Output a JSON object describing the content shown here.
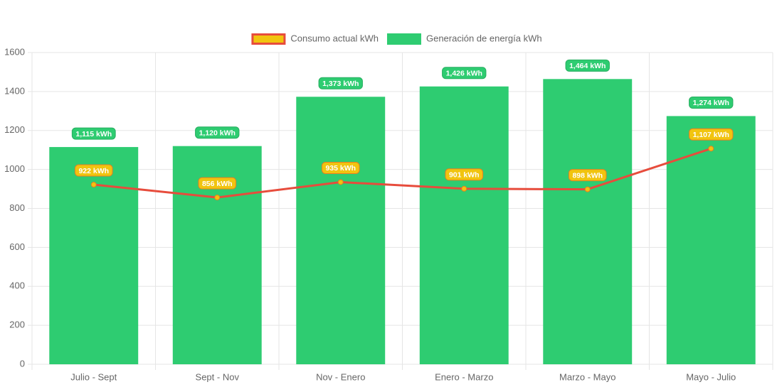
{
  "chart_data": {
    "type": "bar",
    "categories": [
      "Julio - Sept",
      "Sept - Nov",
      "Nov - Enero",
      "Enero - Marzo",
      "Marzo - Mayo",
      "Mayo - Julio"
    ],
    "series": [
      {
        "name": "Consumo actual kWh",
        "type": "line",
        "color": "#e74c3c",
        "point_color": "#f1c40f",
        "values": [
          922,
          856,
          935,
          901,
          898,
          1107
        ],
        "value_labels": [
          "922 kWh",
          "856 kWh",
          "935 kWh",
          "901 kWh",
          "898 kWh",
          "1,107 kWh"
        ]
      },
      {
        "name": "Generación de energía kWh",
        "type": "bar",
        "color": "#2ecc71",
        "values": [
          1115,
          1120,
          1373,
          1426,
          1464,
          1274
        ],
        "value_labels": [
          "1,115 kWh",
          "1,120 kWh",
          "1,373 kWh",
          "1,426 kWh",
          "1,464 kWh",
          "1,274 kWh"
        ]
      }
    ],
    "ylim": [
      0,
      1600
    ],
    "yticks": [
      0,
      200,
      400,
      600,
      800,
      1000,
      1200,
      1400,
      1600
    ],
    "grid": true,
    "legend": "top"
  }
}
